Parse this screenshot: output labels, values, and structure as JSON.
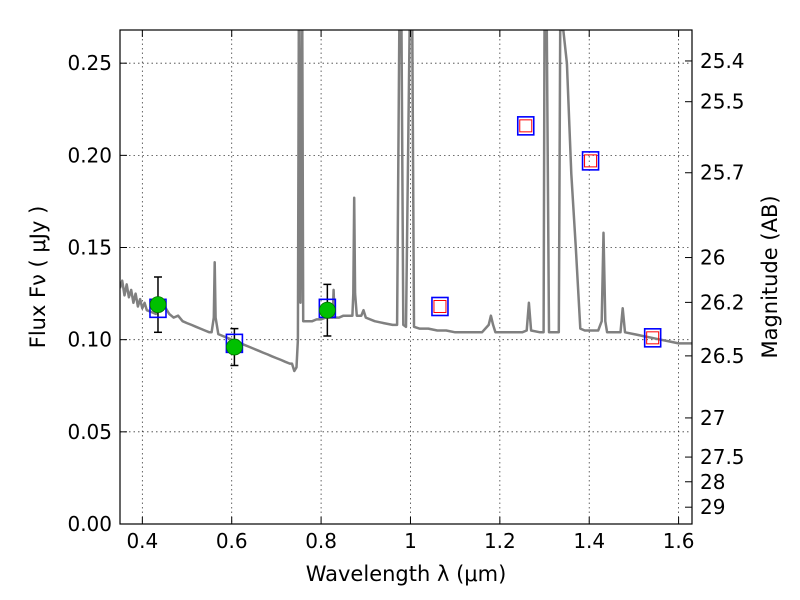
{
  "chart_data": {
    "type": "scatter",
    "xlabel": "Wavelength  λ (μm)",
    "ylabel": "Flux  Fν  ( μJy )",
    "y2label": "Magnitude (AB)",
    "xlim": [
      0.35,
      1.63
    ],
    "ylim": [
      0.0,
      0.268
    ],
    "grid": true,
    "x_ticks": [
      {
        "value": 0.4,
        "label": "0.4"
      },
      {
        "value": 0.6,
        "label": "0.6"
      },
      {
        "value": 0.8,
        "label": "0.8"
      },
      {
        "value": 1.0,
        "label": "1"
      },
      {
        "value": 1.2,
        "label": "1.2"
      },
      {
        "value": 1.4,
        "label": "1.4"
      },
      {
        "value": 1.6,
        "label": "1.6"
      }
    ],
    "y_ticks": [
      {
        "value": 0.0,
        "label": "0.00"
      },
      {
        "value": 0.05,
        "label": "0.05"
      },
      {
        "value": 0.1,
        "label": "0.10"
      },
      {
        "value": 0.15,
        "label": "0.15"
      },
      {
        "value": 0.2,
        "label": "0.20"
      },
      {
        "value": 0.25,
        "label": "0.25"
      }
    ],
    "mag_ticks": [
      {
        "mag": 25.4,
        "label": "25.4"
      },
      {
        "mag": 25.5,
        "label": "25.5"
      },
      {
        "mag": 25.7,
        "label": "25.7"
      },
      {
        "mag": 26.0,
        "label": "26"
      },
      {
        "mag": 26.2,
        "label": "26.2"
      },
      {
        "mag": 26.5,
        "label": "26.5"
      },
      {
        "mag": 27.0,
        "label": "27"
      },
      {
        "mag": 27.5,
        "label": "27.5"
      },
      {
        "mag": 28.0,
        "label": "28"
      },
      {
        "mag": 29.0,
        "label": "29"
      }
    ],
    "series": [
      {
        "type": "line",
        "color": "#808080",
        "points": [
          [
            0.35,
            0.128
          ],
          [
            0.355,
            0.132
          ],
          [
            0.36,
            0.124
          ],
          [
            0.365,
            0.13
          ],
          [
            0.37,
            0.123
          ],
          [
            0.375,
            0.127
          ],
          [
            0.38,
            0.12
          ],
          [
            0.385,
            0.125
          ],
          [
            0.39,
            0.118
          ],
          [
            0.395,
            0.122
          ],
          [
            0.4,
            0.117
          ],
          [
            0.405,
            0.12
          ],
          [
            0.41,
            0.116
          ],
          [
            0.42,
            0.115
          ],
          [
            0.43,
            0.114
          ],
          [
            0.44,
            0.116
          ],
          [
            0.45,
            0.118
          ],
          [
            0.46,
            0.114
          ],
          [
            0.47,
            0.112
          ],
          [
            0.48,
            0.113
          ],
          [
            0.49,
            0.11
          ],
          [
            0.5,
            0.109
          ],
          [
            0.51,
            0.108
          ],
          [
            0.52,
            0.107
          ],
          [
            0.53,
            0.106
          ],
          [
            0.54,
            0.105
          ],
          [
            0.55,
            0.104
          ],
          [
            0.555,
            0.104
          ],
          [
            0.56,
            0.112
          ],
          [
            0.562,
            0.142
          ],
          [
            0.564,
            0.112
          ],
          [
            0.57,
            0.103
          ],
          [
            0.58,
            0.102
          ],
          [
            0.59,
            0.101
          ],
          [
            0.6,
            0.1
          ],
          [
            0.61,
            0.099
          ],
          [
            0.62,
            0.098
          ],
          [
            0.63,
            0.097
          ],
          [
            0.64,
            0.096
          ],
          [
            0.65,
            0.095
          ],
          [
            0.66,
            0.094
          ],
          [
            0.67,
            0.093
          ],
          [
            0.68,
            0.092
          ],
          [
            0.69,
            0.091
          ],
          [
            0.7,
            0.09
          ],
          [
            0.71,
            0.089
          ],
          [
            0.72,
            0.088
          ],
          [
            0.73,
            0.087
          ],
          [
            0.735,
            0.087
          ],
          [
            0.74,
            0.083
          ],
          [
            0.745,
            0.085
          ],
          [
            0.748,
            0.1
          ],
          [
            0.75,
            0.268
          ],
          [
            0.752,
            0.268
          ],
          [
            0.754,
            0.12
          ],
          [
            0.758,
            0.268
          ],
          [
            0.76,
            0.11
          ],
          [
            0.77,
            0.11
          ],
          [
            0.78,
            0.11
          ],
          [
            0.79,
            0.111
          ],
          [
            0.8,
            0.111
          ],
          [
            0.81,
            0.112
          ],
          [
            0.82,
            0.112
          ],
          [
            0.826,
            0.112
          ],
          [
            0.828,
            0.127
          ],
          [
            0.83,
            0.112
          ],
          [
            0.84,
            0.112
          ],
          [
            0.85,
            0.113
          ],
          [
            0.86,
            0.113
          ],
          [
            0.87,
            0.113
          ],
          [
            0.872,
            0.125
          ],
          [
            0.874,
            0.177
          ],
          [
            0.876,
            0.125
          ],
          [
            0.88,
            0.113
          ],
          [
            0.89,
            0.113
          ],
          [
            0.895,
            0.116
          ],
          [
            0.9,
            0.112
          ],
          [
            0.92,
            0.11
          ],
          [
            0.94,
            0.109
          ],
          [
            0.96,
            0.108
          ],
          [
            0.97,
            0.108
          ],
          [
            0.975,
            0.268
          ],
          [
            0.98,
            0.268
          ],
          [
            0.984,
            0.108
          ],
          [
            0.99,
            0.107
          ],
          [
            0.998,
            0.268
          ],
          [
            1.004,
            0.268
          ],
          [
            1.008,
            0.107
          ],
          [
            1.02,
            0.106
          ],
          [
            1.04,
            0.106
          ],
          [
            1.06,
            0.105
          ],
          [
            1.08,
            0.105
          ],
          [
            1.1,
            0.104
          ],
          [
            1.12,
            0.104
          ],
          [
            1.14,
            0.104
          ],
          [
            1.16,
            0.104
          ],
          [
            1.175,
            0.108
          ],
          [
            1.18,
            0.113
          ],
          [
            1.185,
            0.108
          ],
          [
            1.19,
            0.104
          ],
          [
            1.21,
            0.104
          ],
          [
            1.23,
            0.104
          ],
          [
            1.25,
            0.104
          ],
          [
            1.26,
            0.105
          ],
          [
            1.265,
            0.12
          ],
          [
            1.27,
            0.105
          ],
          [
            1.29,
            0.104
          ],
          [
            1.298,
            0.104
          ],
          [
            1.3,
            0.268
          ],
          [
            1.305,
            0.268
          ],
          [
            1.31,
            0.104
          ],
          [
            1.32,
            0.104
          ],
          [
            1.332,
            0.104
          ],
          [
            1.335,
            0.268
          ],
          [
            1.342,
            0.268
          ],
          [
            1.35,
            0.25
          ],
          [
            1.36,
            0.19
          ],
          [
            1.37,
            0.15
          ],
          [
            1.38,
            0.106
          ],
          [
            1.39,
            0.105
          ],
          [
            1.4,
            0.105
          ],
          [
            1.41,
            0.105
          ],
          [
            1.42,
            0.105
          ],
          [
            1.428,
            0.11
          ],
          [
            1.432,
            0.158
          ],
          [
            1.436,
            0.11
          ],
          [
            1.44,
            0.104
          ],
          [
            1.46,
            0.104
          ],
          [
            1.47,
            0.104
          ],
          [
            1.475,
            0.117
          ],
          [
            1.48,
            0.104
          ],
          [
            1.5,
            0.103
          ],
          [
            1.52,
            0.102
          ],
          [
            1.54,
            0.101
          ],
          [
            1.56,
            0.1
          ],
          [
            1.58,
            0.099
          ],
          [
            1.6,
            0.098
          ],
          [
            1.63,
            0.098
          ]
        ]
      },
      {
        "type": "errorbar",
        "marker": "circle",
        "color": "#00c000",
        "points": [
          {
            "x": 0.435,
            "y": 0.119,
            "err": 0.015
          },
          {
            "x": 0.606,
            "y": 0.096,
            "err": 0.01
          },
          {
            "x": 0.814,
            "y": 0.116,
            "err": 0.014
          }
        ]
      },
      {
        "type": "scatter",
        "marker": "open-square",
        "color": "#0000ff",
        "points": [
          {
            "x": 0.435,
            "y": 0.117
          },
          {
            "x": 0.606,
            "y": 0.098
          },
          {
            "x": 0.814,
            "y": 0.117
          },
          {
            "x": 1.066,
            "y": 0.118
          },
          {
            "x": 1.258,
            "y": 0.216
          },
          {
            "x": 1.403,
            "y": 0.197
          },
          {
            "x": 1.542,
            "y": 0.101
          }
        ]
      },
      {
        "type": "scatter",
        "marker": "open-square",
        "color": "#ff0000",
        "points": [
          {
            "x": 1.066,
            "y": 0.118
          },
          {
            "x": 1.258,
            "y": 0.216
          },
          {
            "x": 1.403,
            "y": 0.197
          },
          {
            "x": 1.542,
            "y": 0.101
          }
        ]
      }
    ]
  }
}
